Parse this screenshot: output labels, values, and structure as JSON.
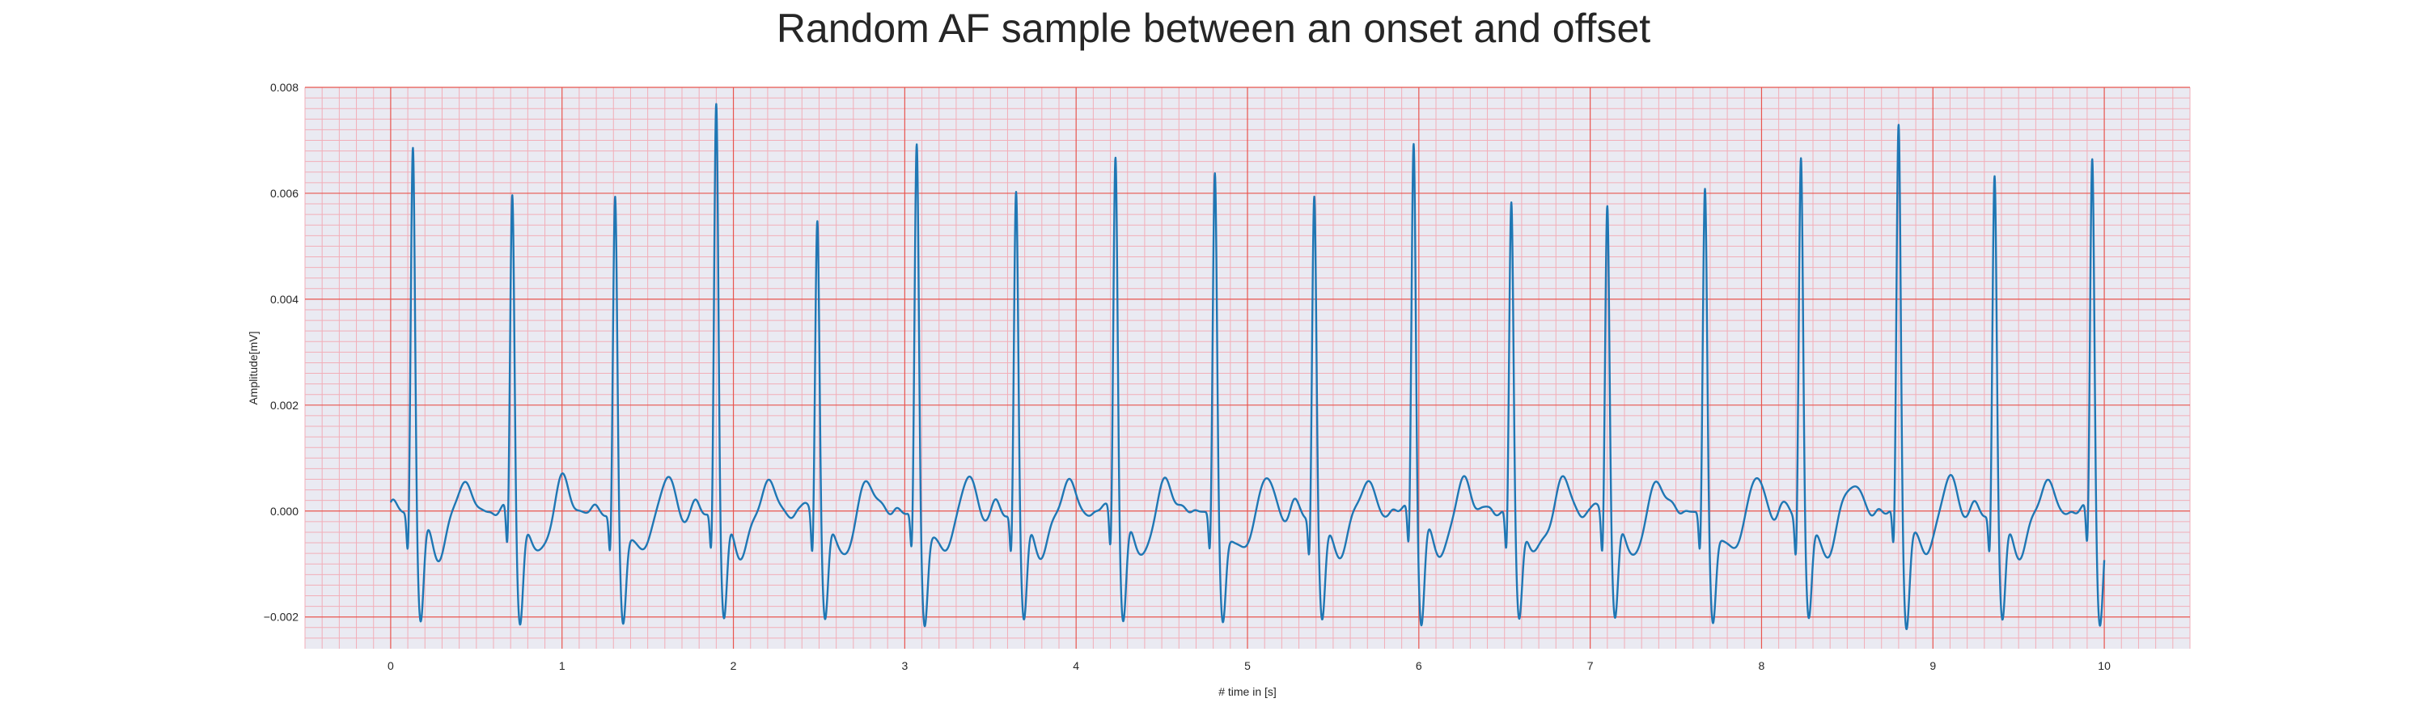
{
  "chart_data": {
    "type": "line",
    "title": "Random AF sample between an onset and offset",
    "xlabel": "# time in [s]",
    "ylabel": "Amplitude[mV]",
    "xlim": [
      -0.5,
      10.5
    ],
    "ylim": [
      -0.0026,
      0.008
    ],
    "x_ticks": [
      0,
      1,
      2,
      3,
      4,
      5,
      6,
      7,
      8,
      9,
      10
    ],
    "x_tick_labels": [
      "0",
      "1",
      "2",
      "3",
      "4",
      "5",
      "6",
      "7",
      "8",
      "9",
      "10"
    ],
    "y_ticks": [
      -0.002,
      0.0,
      0.002,
      0.004,
      0.006,
      0.008
    ],
    "y_tick_labels": [
      "−0.002",
      "0.000",
      "0.002",
      "0.004",
      "0.006",
      "0.008"
    ],
    "grid": true,
    "minor_grid": true,
    "legend": "none",
    "colors": {
      "plot_background": "#eaeaf2",
      "major_grid": "#e8554e",
      "minor_grid": "#f2aeb8",
      "line": "#1f77b4",
      "text": "#262626"
    },
    "series": [
      {
        "x_start": 0.0,
        "x_end": 10.0,
        "r_peaks": [
          {
            "t": 0.13,
            "amp": 0.007
          },
          {
            "t": 0.71,
            "amp": 0.0061
          },
          {
            "t": 1.31,
            "amp": 0.0059
          },
          {
            "t": 1.9,
            "amp": 0.0078
          },
          {
            "t": 2.49,
            "amp": 0.0057
          },
          {
            "t": 3.07,
            "amp": 0.0069
          },
          {
            "t": 3.65,
            "amp": 0.0061
          },
          {
            "t": 4.23,
            "amp": 0.0069
          },
          {
            "t": 4.81,
            "amp": 0.0064
          },
          {
            "t": 5.39,
            "amp": 0.006
          },
          {
            "t": 5.97,
            "amp": 0.0071
          },
          {
            "t": 6.54,
            "amp": 0.0059
          },
          {
            "t": 7.1,
            "amp": 0.006
          },
          {
            "t": 7.67,
            "amp": 0.0061
          },
          {
            "t": 8.23,
            "amp": 0.0068
          },
          {
            "t": 8.8,
            "amp": 0.0073
          },
          {
            "t": 9.36,
            "amp": 0.0064
          },
          {
            "t": 9.93,
            "amp": 0.0068
          }
        ],
        "s_depth": -0.002,
        "q_depth": -0.001,
        "t_wave_amp": 0.0006,
        "baseline": 0.0
      }
    ]
  }
}
